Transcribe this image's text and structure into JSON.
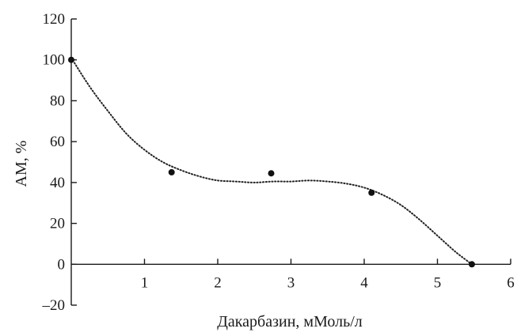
{
  "chart_data": {
    "type": "scatter",
    "title": "",
    "xlabel": "Дакарбазин, мМоль/л",
    "ylabel": "АМ, %",
    "xlim": [
      0,
      6
    ],
    "ylim": [
      -20,
      120
    ],
    "x_ticks": [
      1,
      2,
      3,
      4,
      5,
      6
    ],
    "x_tick_labels": [
      "1",
      "2",
      "3",
      "4",
      "5",
      "6"
    ],
    "y_ticks": [
      -20,
      0,
      20,
      40,
      60,
      80,
      100,
      120
    ],
    "y_tick_labels": [
      "–20",
      "0",
      "20",
      "40",
      "60",
      "80",
      "100",
      "120"
    ],
    "grid": false,
    "series": [
      {
        "type": "scatter",
        "x": [
          0,
          1.37,
          2.73,
          4.1,
          5.47
        ],
        "y": [
          100,
          45,
          44.5,
          35,
          0
        ]
      },
      {
        "type": "line",
        "style": "dotted",
        "x": [
          0,
          0.25,
          0.5,
          0.75,
          1.0,
          1.25,
          1.5,
          1.75,
          2.0,
          2.25,
          2.5,
          2.75,
          3.0,
          3.25,
          3.5,
          3.75,
          4.0,
          4.25,
          4.5,
          4.75,
          5.0,
          5.25,
          5.47
        ],
        "y": [
          101,
          87,
          75,
          64,
          56,
          50,
          46,
          43,
          41,
          40.5,
          40,
          40.5,
          40.5,
          41,
          40.5,
          39.5,
          37.5,
          34,
          29,
          22,
          14,
          6,
          0
        ]
      }
    ],
    "colors": {
      "axis": "#1a1a1a",
      "marker": "#111111",
      "trend": "#222222"
    }
  }
}
